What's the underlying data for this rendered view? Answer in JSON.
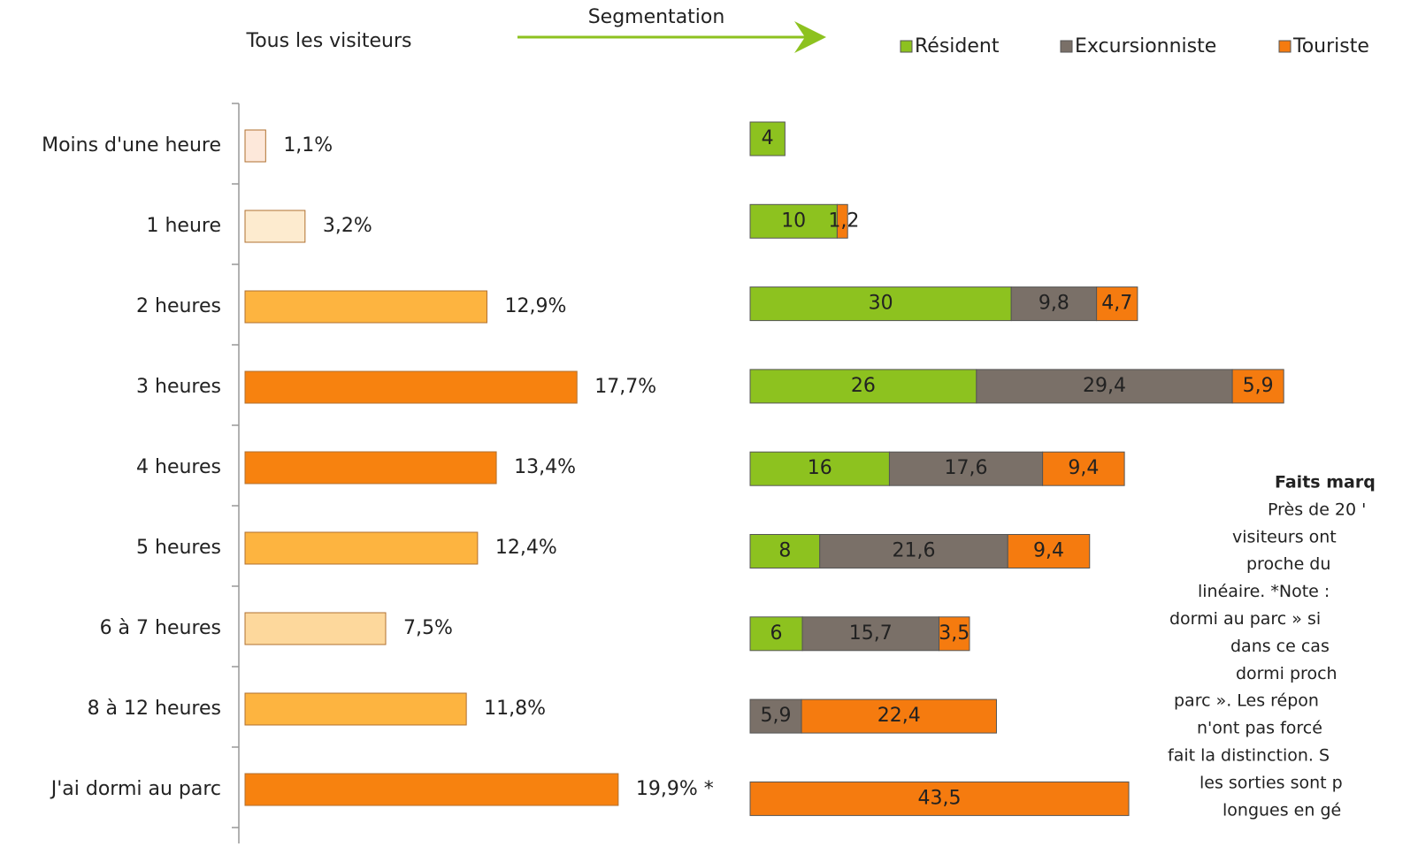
{
  "chart_data": [
    {
      "type": "bar",
      "orientation": "horizontal",
      "title": "Tous les visiteurs",
      "categories": [
        "Moins d'une heure",
        "1 heure",
        "2 heures",
        "3 heures",
        "4 heures",
        "5 heures",
        "6 à 7 heures",
        "8 à 12 heures",
        "J'ai dormi au parc"
      ],
      "values": [
        1.1,
        3.2,
        12.9,
        17.7,
        13.4,
        12.4,
        7.5,
        11.8,
        19.9
      ],
      "value_labels": [
        "1,1%",
        "3,2%",
        "12,9%",
        "17,7%",
        "13,4%",
        "12,4%",
        "7,5%",
        "11,8%",
        "19,9% *"
      ],
      "colors": [
        "#fde8da",
        "#fdebcf",
        "#fdb440",
        "#f7820f",
        "#f7820f",
        "#fdb440",
        "#fdd89c",
        "#fdb440",
        "#f7820f"
      ]
    },
    {
      "type": "stacked_bar",
      "orientation": "horizontal",
      "title": "Segmentation",
      "series": [
        {
          "name": "Résident",
          "color": "#8dc21f",
          "values": [
            4,
            10,
            30,
            26,
            16,
            8,
            6,
            null,
            null
          ],
          "value_labels": [
            "4",
            "10",
            "30",
            "26",
            "16",
            "8",
            "6",
            null,
            null
          ]
        },
        {
          "name": "Excursionniste",
          "color": "#7a7068",
          "values": [
            null,
            null,
            9.8,
            29.4,
            17.6,
            21.6,
            15.7,
            5.9,
            null
          ],
          "value_labels": [
            null,
            null,
            "9,8",
            "29,4",
            "17,6",
            "21,6",
            "15,7",
            "5,9",
            null
          ]
        },
        {
          "name": "Touriste",
          "color": "#f57b0f",
          "values": [
            null,
            1.2,
            4.7,
            5.9,
            9.4,
            9.4,
            3.5,
            22.4,
            43.5
          ],
          "value_labels": [
            null,
            "1,2",
            "4,7",
            "5,9",
            "9,4",
            "9,4",
            "3,5",
            "22,4",
            "43,5"
          ]
        }
      ]
    }
  ],
  "annotation": {
    "lines": [
      "Faits marq",
      "Près de 20 '",
      "visiteurs ont",
      "proche du",
      "linéaire. *Note :",
      "dormi au parc » si",
      "dans ce cas",
      "dormi proch",
      "parc ». Les répon",
      "n'ont pas forcé",
      "fait la distinction. S",
      "les sorties sont p",
      "longues en gé"
    ]
  }
}
